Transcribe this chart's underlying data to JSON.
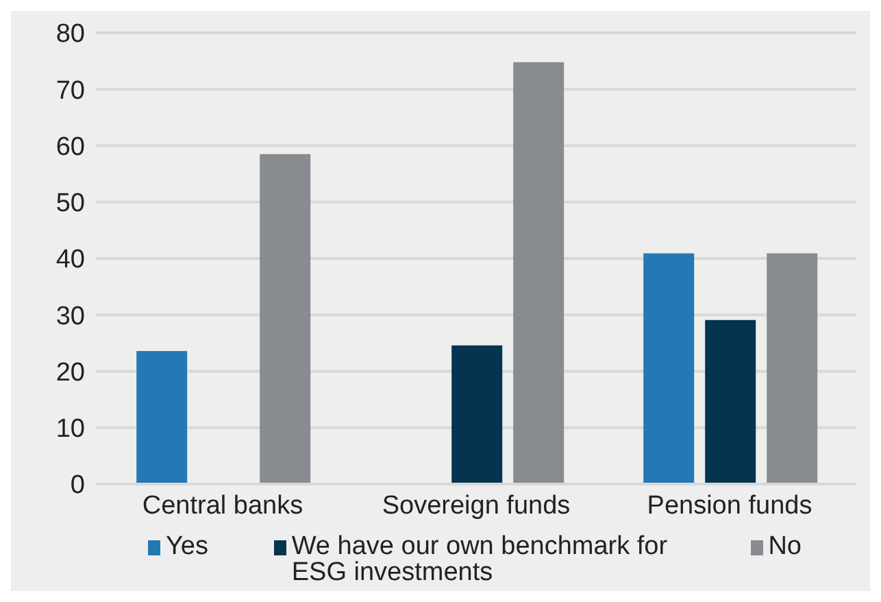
{
  "chart_data": {
    "type": "bar",
    "categories": [
      "Central banks",
      "Sovereign funds",
      "Pension funds"
    ],
    "series": [
      {
        "name": "Yes",
        "color": "#2379b4",
        "values": [
          23.6,
          null,
          40.9
        ]
      },
      {
        "name": "We have our own benchmark for ESG investments",
        "color": "#04344f",
        "values": [
          null,
          24.6,
          29.1
        ]
      },
      {
        "name": "No",
        "color": "#888b90",
        "values": [
          58.5,
          74.8,
          40.9
        ]
      }
    ],
    "ylim": [
      0,
      80
    ],
    "yticks": [
      0,
      10,
      20,
      30,
      40,
      50,
      60,
      70,
      80
    ],
    "grid": "y",
    "legend": "bottom"
  }
}
